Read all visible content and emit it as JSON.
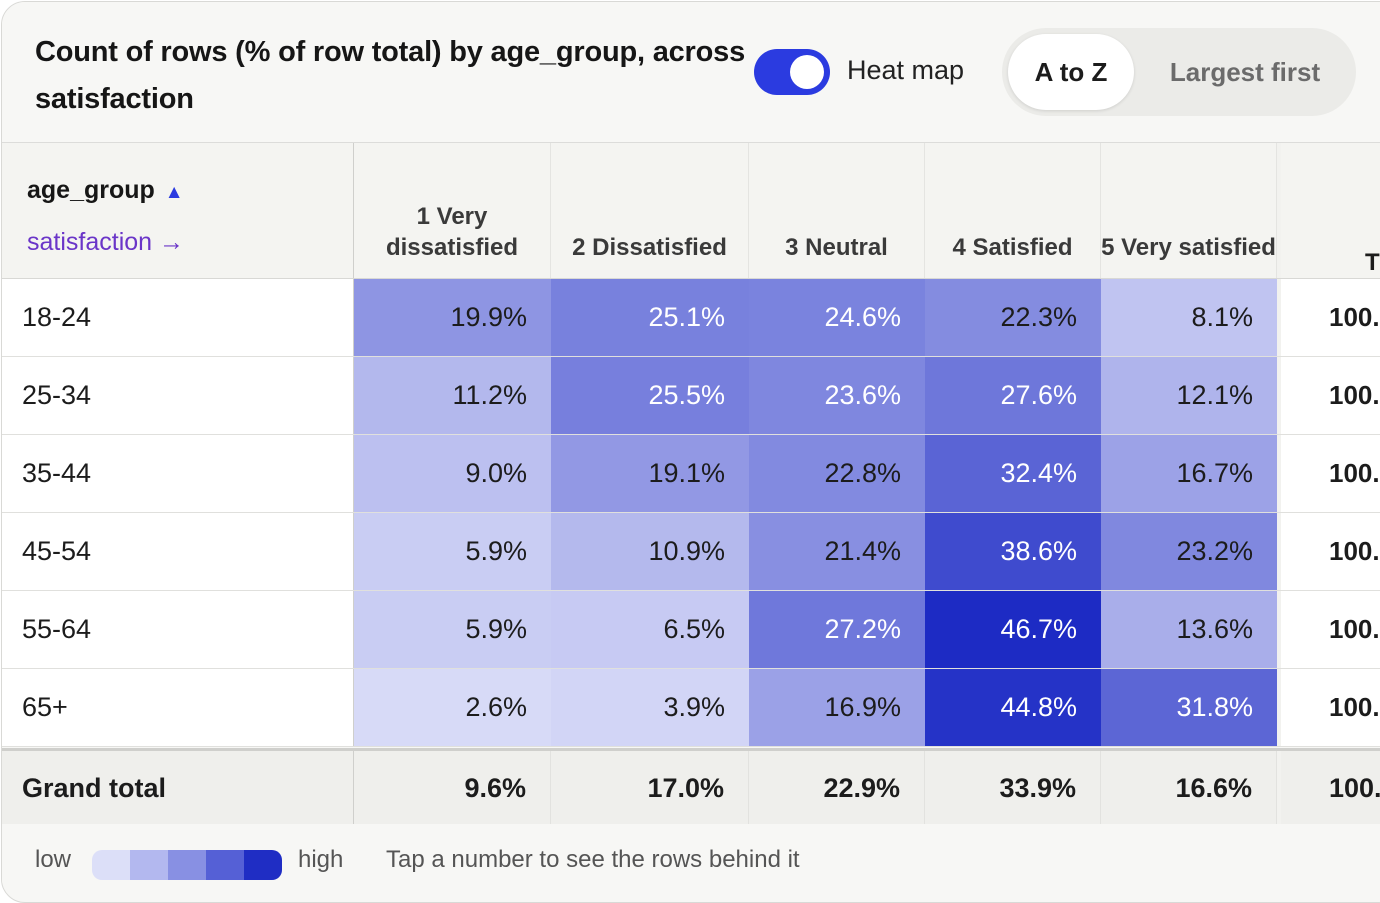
{
  "header": {
    "title": "Count of rows (% of row total) by age_group, across satisfaction",
    "heatmap_toggle": {
      "label": "Heat map",
      "on": true
    },
    "sort_options": [
      "A to Z",
      "Largest first"
    ],
    "sort_selected": "A to Z"
  },
  "table": {
    "row_dimension": "age_group",
    "row_sort_indicator": "▲",
    "column_dimension": "satisfaction →",
    "columns": [
      "1 Very dissatisfied",
      "2 Dissatisfied",
      "3 Neutral",
      "4 Satisfied",
      "5 Very satisfied"
    ],
    "total_column_label": "T",
    "rows": [
      {
        "label": "18-24",
        "values": [
          "19.9%",
          "25.1%",
          "24.6%",
          "22.3%",
          "8.1%"
        ],
        "total": "100."
      },
      {
        "label": "25-34",
        "values": [
          "11.2%",
          "25.5%",
          "23.6%",
          "27.6%",
          "12.1%"
        ],
        "total": "100."
      },
      {
        "label": "35-44",
        "values": [
          "9.0%",
          "19.1%",
          "22.8%",
          "32.4%",
          "16.7%"
        ],
        "total": "100."
      },
      {
        "label": "45-54",
        "values": [
          "5.9%",
          "10.9%",
          "21.4%",
          "38.6%",
          "23.2%"
        ],
        "total": "100."
      },
      {
        "label": "55-64",
        "values": [
          "5.9%",
          "6.5%",
          "27.2%",
          "46.7%",
          "13.6%"
        ],
        "total": "100."
      },
      {
        "label": "65+",
        "values": [
          "2.6%",
          "3.9%",
          "16.9%",
          "44.8%",
          "31.8%"
        ],
        "total": "100."
      }
    ],
    "grand_total": {
      "label": "Grand total",
      "values": [
        "9.6%",
        "17.0%",
        "22.9%",
        "33.9%",
        "16.6%"
      ],
      "total": "100."
    }
  },
  "legend": {
    "low": "low",
    "high": "high",
    "hint": "Tap a number to see the rows behind it",
    "colors": [
      "#dcdff8",
      "#b3b8ef",
      "#8890e3",
      "#5560d6",
      "#1f2dc4"
    ]
  }
}
